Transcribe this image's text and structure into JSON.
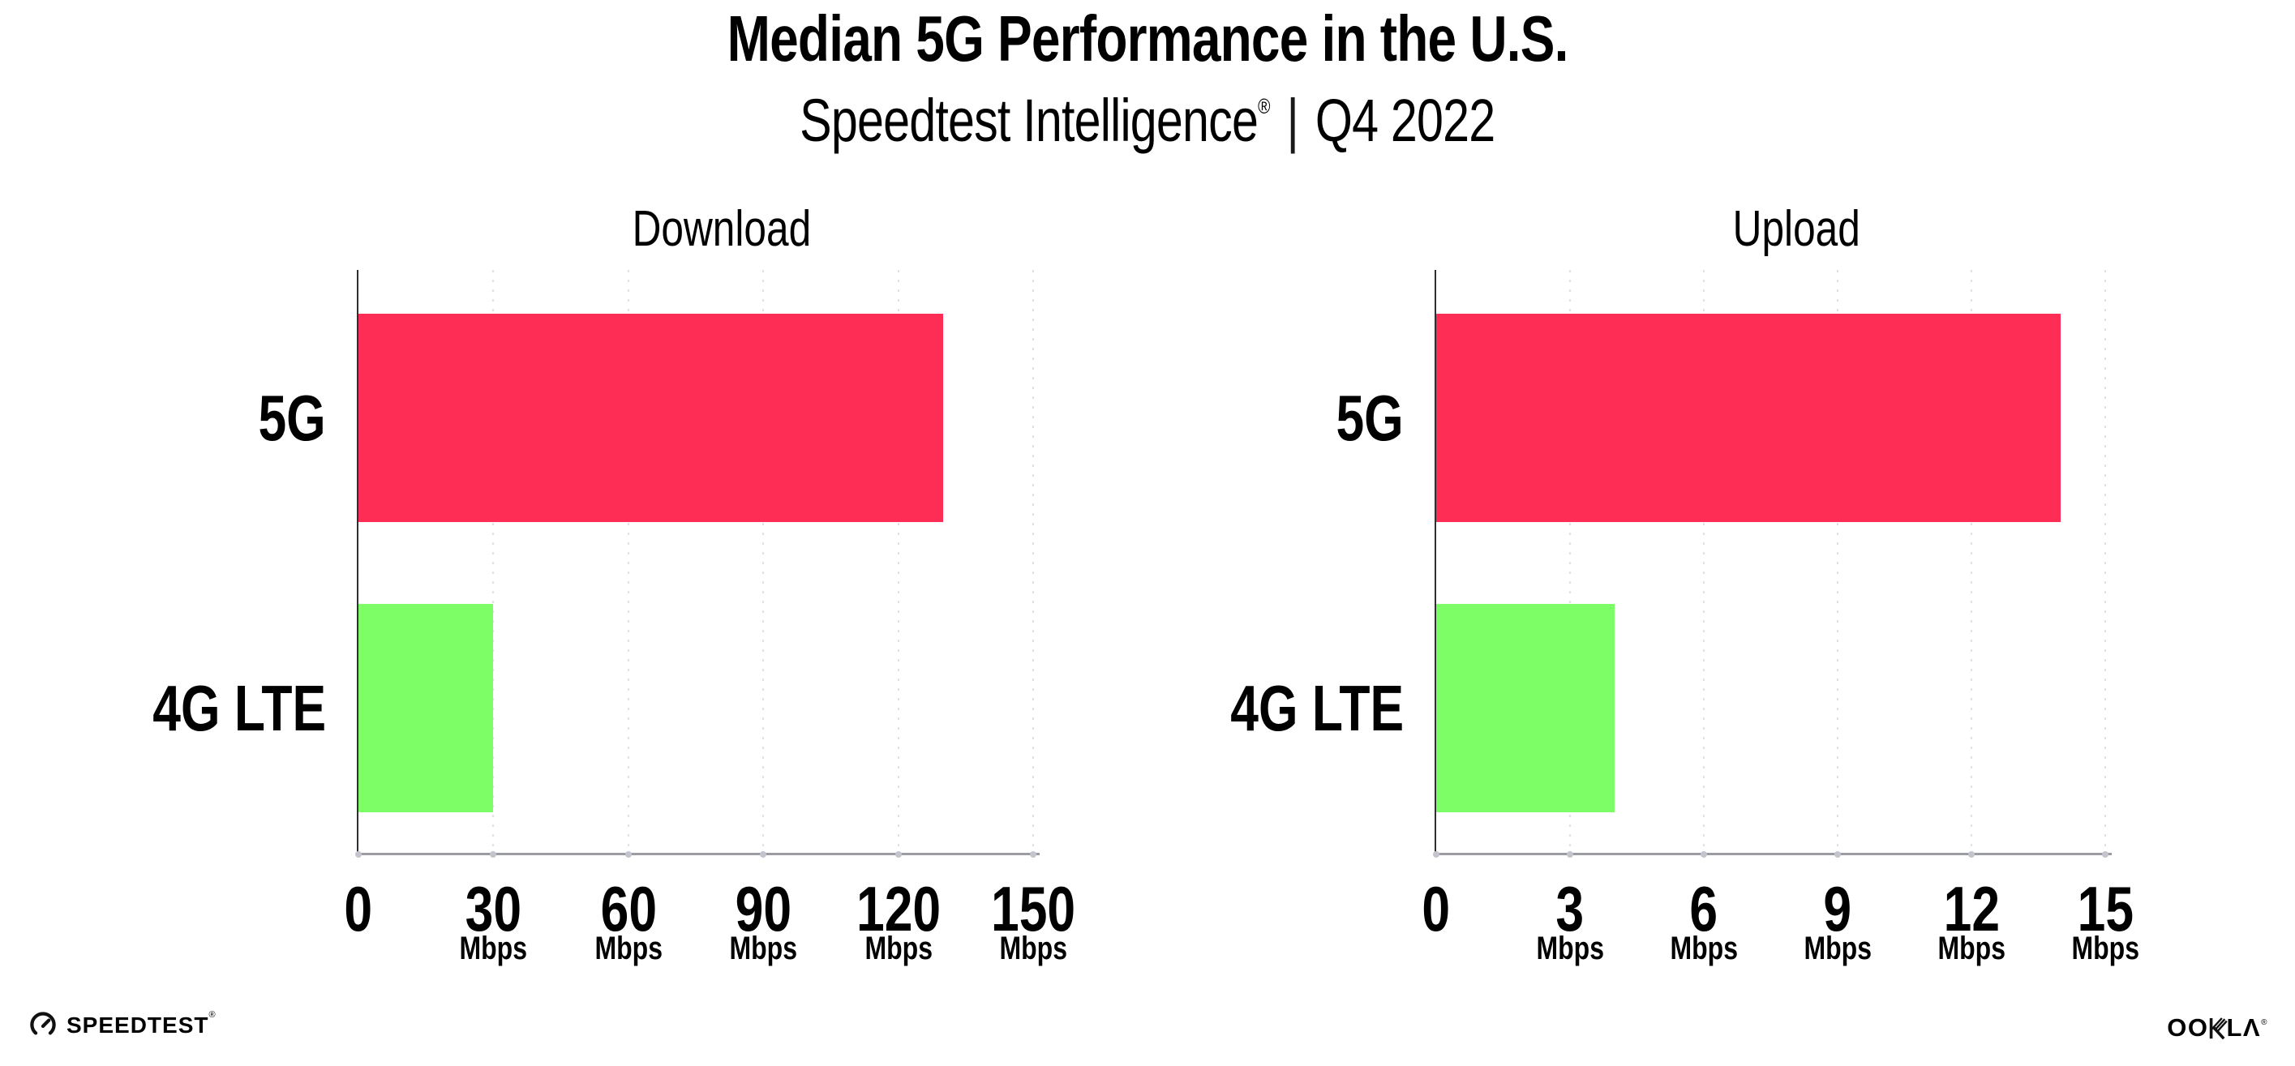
{
  "header": {
    "title": "Median 5G Performance in the U.S.",
    "subtitle_product": "Speedtest Intelligence",
    "subtitle_mark": "®",
    "subtitle_separator": "|",
    "subtitle_period": "Q4 2022"
  },
  "chart_data": [
    {
      "type": "bar",
      "orientation": "horizontal",
      "title": "Download",
      "categories": [
        "5G",
        "4G LTE"
      ],
      "values": [
        130,
        30
      ],
      "unit": "Mbps",
      "xlim": [
        0,
        150
      ],
      "xticks": [
        0,
        30,
        60,
        90,
        120,
        150
      ],
      "bar_colors": [
        "#fd2d55",
        "#7dfe66"
      ],
      "grid": "dotted-vertical",
      "legend": "none"
    },
    {
      "type": "bar",
      "orientation": "horizontal",
      "title": "Upload",
      "categories": [
        "5G",
        "4G LTE"
      ],
      "values": [
        14,
        4
      ],
      "unit": "Mbps",
      "xlim": [
        0,
        15
      ],
      "xticks": [
        0,
        3,
        6,
        9,
        12,
        15
      ],
      "bar_colors": [
        "#fd2d55",
        "#7dfe66"
      ],
      "grid": "dotted-vertical",
      "legend": "none"
    }
  ],
  "footer": {
    "speedtest_label": "SPEEDTEST",
    "speedtest_mark": "®",
    "ookla_label": "OOKLA",
    "ookla_left": "OO",
    "ookla_right": "LΛ",
    "ookla_mark": "®"
  },
  "colors": {
    "bar_5g": "#fd2d55",
    "bar_4g_lte": "#7dfe66",
    "axis_x": "#9b9ba3",
    "axis_y": "#2e2e33",
    "gridline": "#e0e0ea",
    "text": "#000000",
    "background": "#ffffff"
  }
}
